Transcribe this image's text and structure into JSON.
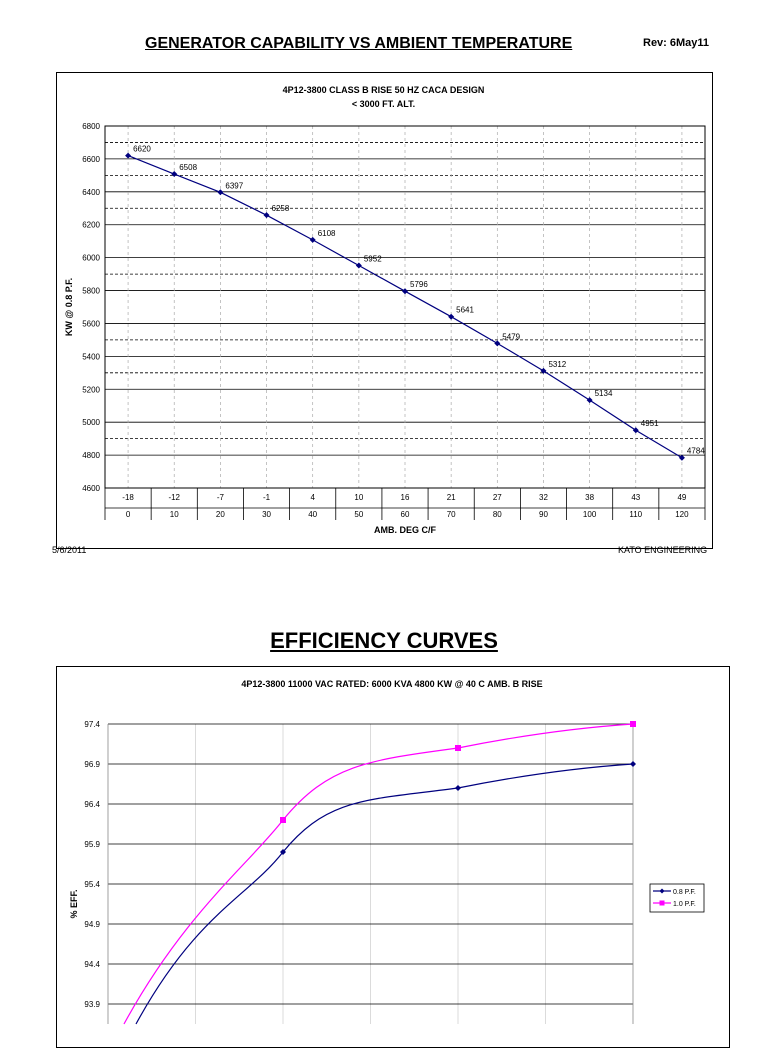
{
  "header": {
    "title": "GENERATOR CAPABILITY  VS  AMBIENT TEMPERATURE",
    "rev": "Rev: 6May11"
  },
  "footer": {
    "date": "5/6/2011",
    "company": "KATO ENGINEERING"
  },
  "section2": {
    "title": "EFFICIENCY  CURVES"
  },
  "chart_data": [
    {
      "type": "line",
      "title": "4P12-3800  CLASS B RISE  50 HZ  CACA DESIGN",
      "subtitle": "< 3000 FT. ALT.",
      "xlabel": "AMB. DEG C/F",
      "ylabel": "KW @ 0.8 P.F.",
      "ylim": [
        4600,
        6800
      ],
      "yticks": [
        4600,
        4800,
        5000,
        5200,
        5400,
        5600,
        5800,
        6000,
        6200,
        6400,
        6600,
        6800
      ],
      "x_celsius": [
        "-18",
        "-12",
        "-7",
        "-1",
        "4",
        "10",
        "16",
        "21",
        "27",
        "32",
        "38",
        "43",
        "49"
      ],
      "x_fahrenheit": [
        "0",
        "10",
        "20",
        "30",
        "40",
        "50",
        "60",
        "70",
        "80",
        "90",
        "100",
        "110",
        "120"
      ],
      "values": [
        6620,
        6508,
        6397,
        6258,
        6108,
        5952,
        5796,
        5641,
        5479,
        5312,
        5134,
        4951,
        4784
      ],
      "data_labels": [
        "6620",
        "6508",
        "6397",
        "6258",
        "6108",
        "5952",
        "5796",
        "5641",
        "5479",
        "5312",
        "5134",
        "4951",
        "4784"
      ],
      "dashed_reference_lines": [
        6700,
        6500,
        6300,
        5900,
        5500,
        5300,
        4900
      ],
      "grid": true,
      "line_color": "#00007f"
    },
    {
      "type": "line",
      "title": "4P12-3800  11000 VAC  RATED: 6000 KVA  4800 KW @ 40 C AMB.  B RISE",
      "ylabel": "% EFF.",
      "ylim": [
        93.9,
        97.4
      ],
      "yticks": [
        "97.4",
        "96.9",
        "96.4",
        "95.9",
        "95.4",
        "94.9",
        "94.4",
        "93.9"
      ],
      "legend_position": "right",
      "grid": true,
      "series": [
        {
          "name": "0.8 P.F.",
          "color": "#00007f",
          "marker": "diamond",
          "x": [
            0.5,
            0.75,
            1.0
          ],
          "values": [
            95.8,
            96.6,
            96.9
          ]
        },
        {
          "name": "1.0 P.F.",
          "color": "#ff00ff",
          "marker": "square",
          "x": [
            0.5,
            0.75,
            1.0
          ],
          "values": [
            96.2,
            97.1,
            97.4
          ]
        }
      ]
    }
  ]
}
